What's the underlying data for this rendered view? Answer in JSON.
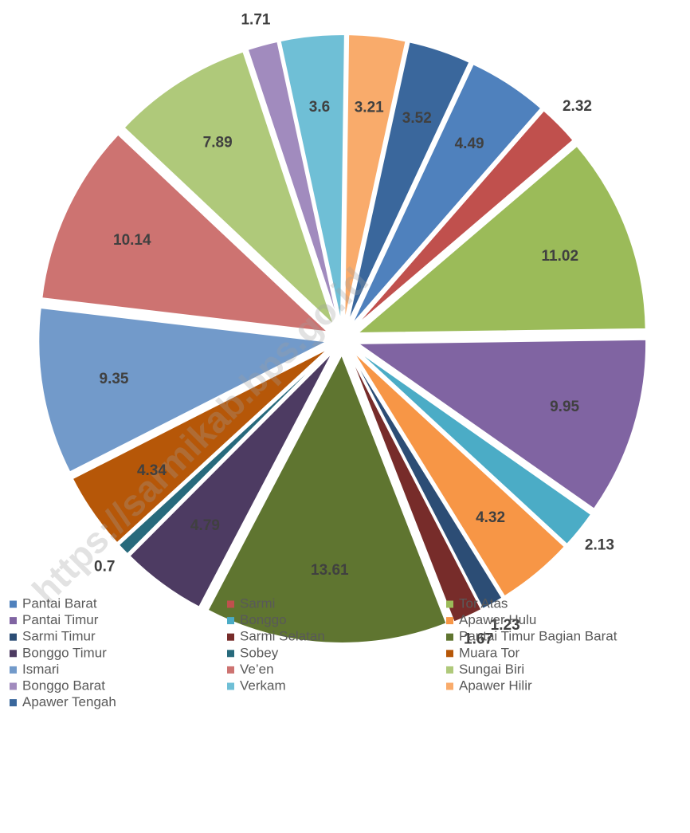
{
  "chart_data": {
    "type": "pie",
    "watermark": "https://sarmikab.bps.go.id",
    "categories": [
      "Pantai Barat",
      "Sarmi",
      "Tor Atas",
      "Pantai Timur",
      "Bonggo",
      "Apawer Hulu",
      "Sarmi Timur",
      "Sarmi Selatan",
      "Pantai Timur Bagian Barat",
      "Bonggo Timur",
      "Sobey",
      "Muara Tor",
      "Ismari",
      "Ve’en",
      "Sungai Biri",
      "Bonggo Barat",
      "Verkam",
      "Apawer Hilir",
      "Apawer Tengah"
    ],
    "values": [
      4.49,
      2.32,
      11.02,
      9.95,
      2.13,
      4.32,
      1.23,
      1.67,
      13.61,
      4.79,
      0.7,
      4.34,
      9.35,
      10.14,
      7.89,
      1.71,
      3.6,
      3.21,
      3.52
    ],
    "colors": [
      "#4f81bd",
      "#c0504d",
      "#9bbb59",
      "#8064a2",
      "#4bacc6",
      "#f79646",
      "#2c4d75",
      "#772c2a",
      "#5f7530",
      "#4d3b62",
      "#276a7c",
      "#b65708",
      "#729aca",
      "#cd7371",
      "#afc97a",
      "#a18bbe",
      "#6fbfd6",
      "#f9ab6b",
      "#3a679c"
    ],
    "legend": "bottom"
  }
}
